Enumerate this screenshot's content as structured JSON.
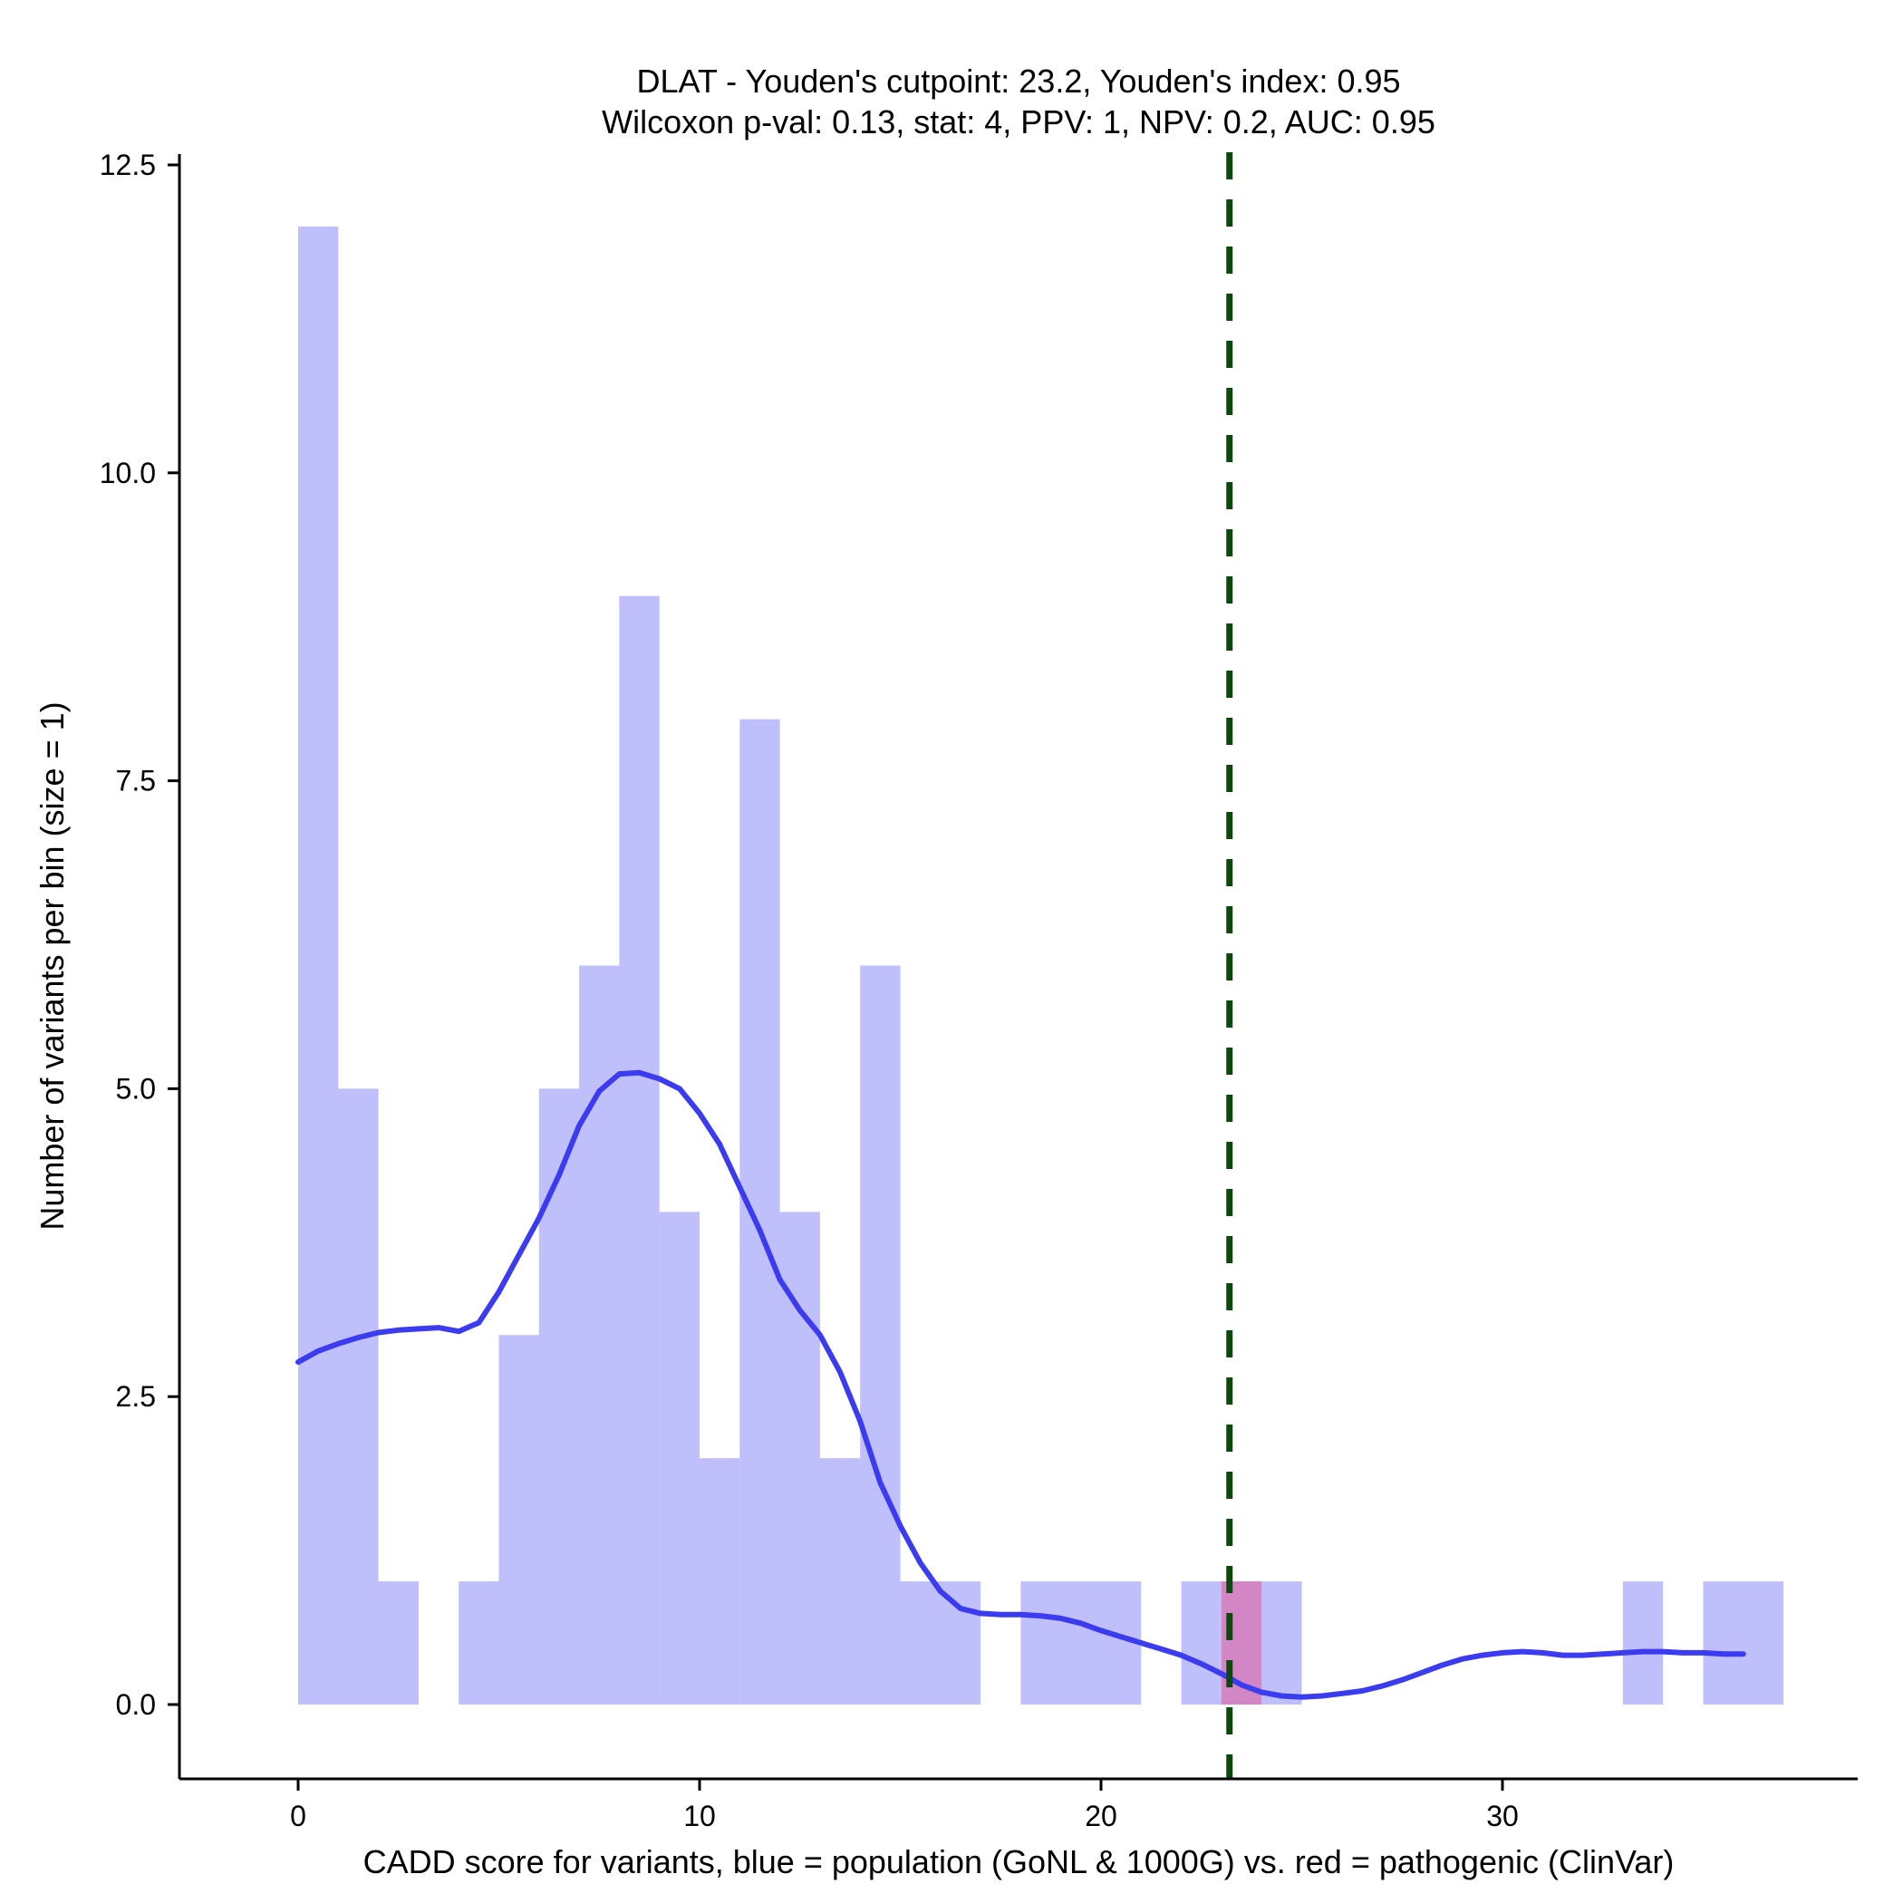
{
  "chart_data": {
    "type": "bar",
    "title": "DLAT - Youden's cutpoint: 23.2, Youden's index: 0.95",
    "subtitle": "Wilcoxon p-val: 0.13, stat: 4, PPV: 1, NPV: 0.2, AUC: 0.95",
    "xlabel": "CADD score for variants, blue = population (GoNL & 1000G) vs. red = pathogenic (ClinVar)",
    "ylabel": "Number of variants per bin (size = 1)",
    "xlim": [
      -2.9,
      38.8
    ],
    "ylim": [
      -0.6,
      12.6
    ],
    "x_ticks": [
      0,
      10,
      20,
      30
    ],
    "x_tick_labels": [
      "0",
      "10",
      "20",
      "30"
    ],
    "y_ticks": [
      0,
      2.5,
      5,
      7.5,
      10,
      12.5
    ],
    "y_tick_labels": [
      "0.0",
      "2.5",
      "5.0",
      "7.5",
      "10.0",
      "12.5"
    ],
    "bin_size": 1,
    "series": [
      {
        "name": "population (GoNL & 1000G)",
        "color": "#8080f8",
        "bins": [
          {
            "start": 0,
            "count": 12
          },
          {
            "start": 1,
            "count": 5
          },
          {
            "start": 2,
            "count": 1
          },
          {
            "start": 4,
            "count": 1
          },
          {
            "start": 5,
            "count": 3
          },
          {
            "start": 6,
            "count": 5
          },
          {
            "start": 7,
            "count": 6
          },
          {
            "start": 8,
            "count": 9
          },
          {
            "start": 9,
            "count": 4
          },
          {
            "start": 10,
            "count": 2
          },
          {
            "start": 11,
            "count": 8
          },
          {
            "start": 12,
            "count": 4
          },
          {
            "start": 13,
            "count": 2
          },
          {
            "start": 14,
            "count": 6
          },
          {
            "start": 15,
            "count": 1
          },
          {
            "start": 16,
            "count": 1
          },
          {
            "start": 18,
            "count": 1
          },
          {
            "start": 19,
            "count": 1
          },
          {
            "start": 20,
            "count": 1
          },
          {
            "start": 22,
            "count": 1
          },
          {
            "start": 23,
            "count": 1
          },
          {
            "start": 24,
            "count": 1
          },
          {
            "start": 33,
            "count": 1
          },
          {
            "start": 35,
            "count": 1
          },
          {
            "start": 36,
            "count": 1
          }
        ]
      },
      {
        "name": "pathogenic (ClinVar)",
        "color": "#e060a0",
        "bins": [
          {
            "start": 23,
            "count": 1
          }
        ]
      }
    ],
    "density_curve": {
      "name": "population density",
      "color": "#3b3bf0",
      "x": [
        0,
        0.5,
        1,
        1.5,
        2,
        2.5,
        3,
        3.5,
        4,
        4.5,
        5,
        5.5,
        6,
        6.5,
        7,
        7.5,
        8,
        8.5,
        9,
        9.5,
        10,
        10.5,
        11,
        11.5,
        12,
        12.5,
        13,
        13.5,
        14,
        14.5,
        15,
        15.5,
        16,
        16.5,
        17,
        17.5,
        18,
        18.5,
        19,
        19.5,
        20,
        20.5,
        21,
        21.5,
        22,
        22.5,
        23,
        23.5,
        24,
        24.5,
        25,
        25.5,
        26,
        26.5,
        27,
        27.5,
        28,
        28.5,
        29,
        29.5,
        30,
        30.5,
        31,
        31.5,
        32,
        32.5,
        33,
        33.5,
        34,
        34.5,
        35,
        35.5,
        36
      ],
      "y": [
        2.78,
        2.87,
        2.93,
        2.98,
        3.02,
        3.04,
        3.05,
        3.06,
        3.03,
        3.1,
        3.35,
        3.65,
        3.95,
        4.3,
        4.7,
        4.98,
        5.12,
        5.13,
        5.08,
        5.0,
        4.8,
        4.55,
        4.2,
        3.85,
        3.45,
        3.2,
        3.0,
        2.7,
        2.3,
        1.8,
        1.45,
        1.15,
        0.92,
        0.78,
        0.74,
        0.73,
        0.73,
        0.72,
        0.7,
        0.66,
        0.6,
        0.55,
        0.5,
        0.45,
        0.4,
        0.33,
        0.25,
        0.16,
        0.1,
        0.07,
        0.06,
        0.07,
        0.09,
        0.11,
        0.15,
        0.2,
        0.26,
        0.32,
        0.37,
        0.4,
        0.42,
        0.43,
        0.42,
        0.4,
        0.4,
        0.41,
        0.42,
        0.43,
        0.43,
        0.42,
        0.42,
        0.41,
        0.41
      ]
    },
    "cutpoint": {
      "label": "Youden's cutpoint",
      "x": 23.2,
      "color": "#0b4a0b"
    },
    "grid": false,
    "legend": "none"
  }
}
